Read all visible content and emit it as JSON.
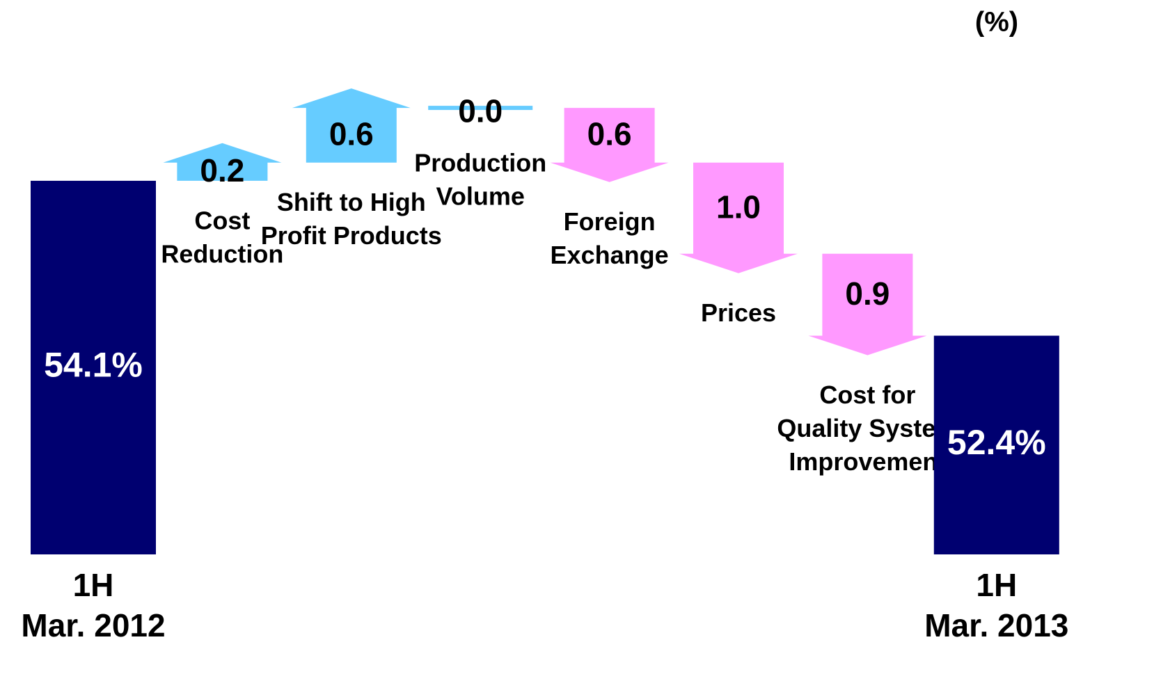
{
  "chart_data": {
    "type": "waterfall",
    "unit_label": "(%)",
    "categories": [
      [
        "1H",
        "Mar. 2012"
      ],
      [
        "Cost",
        "Reduction"
      ],
      [
        "Shift to High",
        "Profit Products"
      ],
      [
        "Production",
        "Volume"
      ],
      [
        "Foreign",
        "Exchange"
      ],
      [
        "Prices"
      ],
      [
        "Cost for",
        "Quality System",
        "Improvement"
      ],
      [
        "1H",
        "Mar. 2013"
      ]
    ],
    "values": [
      54.1,
      0.2,
      0.6,
      0.0,
      -0.6,
      -1.0,
      -0.9,
      52.4
    ],
    "value_labels": [
      "54.1%",
      "0.2",
      "0.6",
      "0.0",
      "0.6",
      "1.0",
      "0.9",
      "52.4%"
    ],
    "totals": [
      true,
      false,
      false,
      false,
      false,
      false,
      false,
      true
    ],
    "colors": {
      "total": "#000070",
      "increase": "#66ccff",
      "decrease": "#ff99ff"
    },
    "ylim": [
      50,
      56
    ]
  }
}
